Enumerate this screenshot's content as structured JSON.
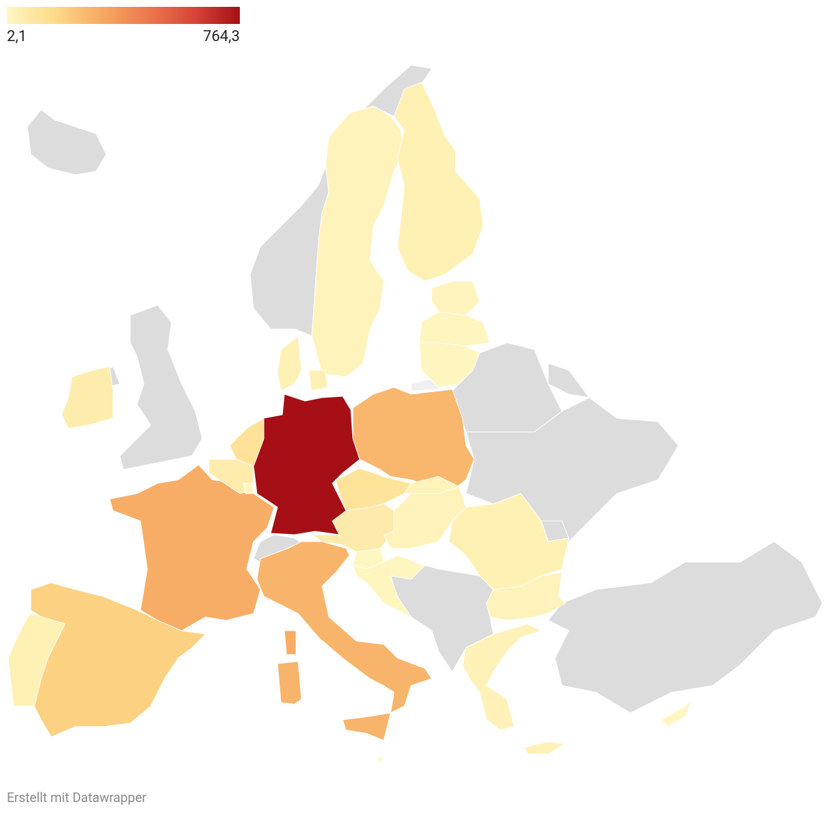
{
  "legend": {
    "min": {
      "value": 2.1,
      "label": "2,1"
    },
    "max": {
      "value": 764.3,
      "label": "764,3"
    },
    "colors": [
      "#fff6c2",
      "#fddc8b",
      "#f7ab63",
      "#ec7a4f",
      "#d9463a",
      "#a50f15"
    ]
  },
  "regions": [
    {
      "value": 764.3
    },
    {
      "value": 300
    },
    {
      "value": 280
    },
    {
      "value": 270
    },
    {
      "value": 190
    },
    {
      "value": 110
    },
    {
      "value": 120
    },
    {
      "value": 60
    },
    {
      "value": 70
    },
    {
      "value": 40
    },
    {
      "value": 20
    },
    {
      "value": 40
    },
    {
      "value": 35
    },
    {
      "value": 15
    },
    {
      "value": 10
    },
    {
      "value": 10
    },
    {
      "value": 60
    },
    {
      "value": 25
    },
    {
      "value": 20
    },
    {
      "value": 5
    },
    {
      "value": 10
    },
    {
      "value": 40
    },
    {
      "value": 25
    },
    {
      "value": 30
    },
    {
      "value": 5
    },
    {
      "value": 5
    },
    {
      "value": 2.1
    }
  ],
  "footer": "Erstellt mit Datawrapper"
}
